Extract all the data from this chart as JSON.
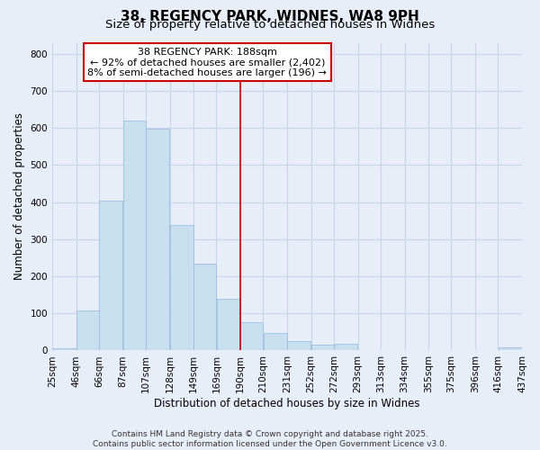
{
  "title": "38, REGENCY PARK, WIDNES, WA8 9PH",
  "subtitle": "Size of property relative to detached houses in Widnes",
  "xlabel": "Distribution of detached houses by size in Widnes",
  "ylabel": "Number of detached properties",
  "bar_edges": [
    25,
    46,
    66,
    87,
    107,
    128,
    149,
    169,
    190,
    210,
    231,
    252,
    272,
    293,
    313,
    334,
    355,
    375,
    396,
    416,
    437
  ],
  "bar_heights": [
    5,
    107,
    403,
    620,
    597,
    338,
    235,
    140,
    77,
    48,
    25,
    15,
    17,
    0,
    0,
    0,
    0,
    0,
    0,
    8
  ],
  "bar_color": "#c8dff0",
  "bar_edge_color": "#a0bee0",
  "vline_x": 190,
  "vline_color": "#cc0000",
  "ylim": [
    0,
    830
  ],
  "yticks": [
    0,
    100,
    200,
    300,
    400,
    500,
    600,
    700,
    800
  ],
  "xtick_labels": [
    "25sqm",
    "46sqm",
    "66sqm",
    "87sqm",
    "107sqm",
    "128sqm",
    "149sqm",
    "169sqm",
    "190sqm",
    "210sqm",
    "231sqm",
    "252sqm",
    "272sqm",
    "293sqm",
    "313sqm",
    "334sqm",
    "355sqm",
    "375sqm",
    "396sqm",
    "416sqm",
    "437sqm"
  ],
  "annotation_title": "38 REGENCY PARK: 188sqm",
  "annotation_line1": "← 92% of detached houses are smaller (2,402)",
  "annotation_line2": "8% of semi-detached houses are larger (196) →",
  "annotation_box_color": "#ffffff",
  "annotation_box_edge": "#cc0000",
  "footnote1": "Contains HM Land Registry data © Crown copyright and database right 2025.",
  "footnote2": "Contains public sector information licensed under the Open Government Licence v3.0.",
  "bg_color": "#e8eef8",
  "grid_color": "#c8d4e8",
  "title_fontsize": 11,
  "subtitle_fontsize": 9.5,
  "axis_label_fontsize": 8.5,
  "tick_fontsize": 7.5,
  "annotation_fontsize": 8,
  "footnote_fontsize": 6.5
}
